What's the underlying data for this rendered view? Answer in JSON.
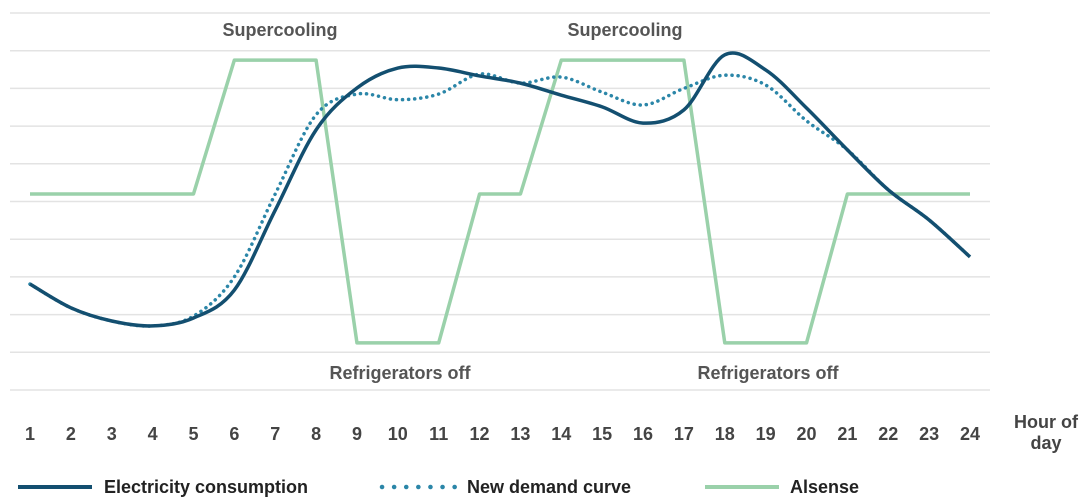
{
  "chart_data": {
    "type": "line",
    "x_label": "Hour of day",
    "categories": [
      "1",
      "2",
      "3",
      "4",
      "5",
      "6",
      "7",
      "8",
      "9",
      "10",
      "11",
      "12",
      "13",
      "14",
      "15",
      "16",
      "17",
      "18",
      "19",
      "20",
      "21",
      "22",
      "23",
      "24"
    ],
    "series": [
      {
        "name": "Electricity consumption",
        "color": "#134f70",
        "style": "solid",
        "values": [
          2.81,
          2.18,
          1.83,
          1.7,
          1.91,
          2.65,
          4.77,
          6.9,
          8.01,
          8.54,
          8.54,
          8.33,
          8.14,
          7.82,
          7.51,
          7.08,
          7.43,
          8.89,
          8.49,
          7.48,
          6.37,
          5.31,
          4.51,
          3.53
        ]
      },
      {
        "name": "New demand curve",
        "color": "#2b86a8",
        "style": "dotted",
        "values": [
          2.81,
          2.18,
          1.83,
          1.7,
          1.96,
          3.0,
          5.2,
          7.3,
          7.85,
          7.7,
          7.85,
          8.38,
          8.14,
          8.3,
          7.9,
          7.56,
          8.0,
          8.35,
          8.09,
          7.14,
          6.37,
          5.31,
          4.51,
          3.53
        ]
      },
      {
        "name": "Alsense",
        "color": "#9ad1aa",
        "style": "straight",
        "values": [
          5.2,
          5.2,
          5.2,
          5.2,
          5.2,
          8.75,
          8.75,
          8.75,
          1.25,
          1.25,
          1.25,
          5.2,
          5.2,
          8.75,
          8.75,
          8.75,
          8.75,
          1.25,
          1.25,
          1.25,
          5.2,
          5.2,
          5.2,
          5.2
        ]
      }
    ],
    "annotations": [
      "Supercooling",
      "Supercooling",
      "Refrigerators off",
      "Refrigerators off"
    ],
    "ylim": [
      0,
      10
    ],
    "yticks": [
      0,
      1,
      2,
      3,
      4,
      5,
      6,
      7,
      8,
      9,
      10
    ],
    "grid": true,
    "legend": "bottom"
  }
}
